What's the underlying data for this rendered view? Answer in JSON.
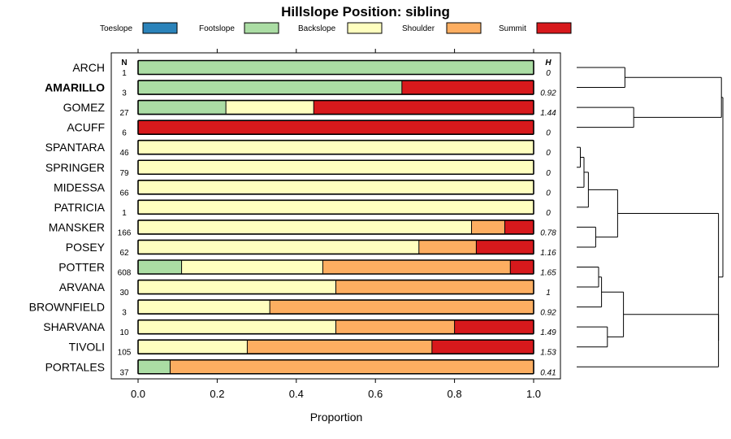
{
  "chart_data": {
    "type": "bar",
    "orientation": "horizontal",
    "stacked": true,
    "title": "Hillslope Position: sibling",
    "xlabel": "Proportion",
    "xlim": [
      0,
      1
    ],
    "xticks": [
      "0.0",
      "0.2",
      "0.4",
      "0.6",
      "0.8",
      "1.0"
    ],
    "n_header": "N",
    "h_header": "H",
    "legend_position": "top",
    "series": [
      {
        "name": "Toeslope",
        "color": "#2b83ba"
      },
      {
        "name": "Footslope",
        "color": "#abdda4"
      },
      {
        "name": "Backslope",
        "color": "#ffffbf"
      },
      {
        "name": "Shoulder",
        "color": "#fdae61"
      },
      {
        "name": "Summit",
        "color": "#d7191c"
      }
    ],
    "rows": [
      {
        "label": "ARCH",
        "n": "1",
        "h": "0",
        "bold": false,
        "values": [
          0,
          1.0,
          0,
          0,
          0
        ]
      },
      {
        "label": "AMARILLO",
        "n": "3",
        "h": "0.92",
        "bold": true,
        "values": [
          0,
          0.667,
          0,
          0,
          0.333
        ]
      },
      {
        "label": "GOMEZ",
        "n": "27",
        "h": "1.44",
        "bold": false,
        "values": [
          0,
          0.222,
          0.222,
          0,
          0.556
        ]
      },
      {
        "label": "ACUFF",
        "n": "6",
        "h": "0",
        "bold": false,
        "values": [
          0,
          0,
          0,
          0,
          1.0
        ]
      },
      {
        "label": "SPANTARA",
        "n": "46",
        "h": "0",
        "bold": false,
        "values": [
          0,
          0,
          1.0,
          0,
          0
        ]
      },
      {
        "label": "SPRINGER",
        "n": "79",
        "h": "0",
        "bold": false,
        "values": [
          0,
          0,
          1.0,
          0,
          0
        ]
      },
      {
        "label": "MIDESSA",
        "n": "66",
        "h": "0",
        "bold": false,
        "values": [
          0,
          0,
          1.0,
          0,
          0
        ]
      },
      {
        "label": "PATRICIA",
        "n": "1",
        "h": "0",
        "bold": false,
        "values": [
          0,
          0,
          1.0,
          0,
          0
        ]
      },
      {
        "label": "MANSKER",
        "n": "166",
        "h": "0.78",
        "bold": false,
        "values": [
          0,
          0,
          0.843,
          0.084,
          0.073
        ]
      },
      {
        "label": "POSEY",
        "n": "62",
        "h": "1.16",
        "bold": false,
        "values": [
          0,
          0,
          0.71,
          0.145,
          0.145
        ]
      },
      {
        "label": "POTTER",
        "n": "608",
        "h": "1.65",
        "bold": false,
        "values": [
          0,
          0.11,
          0.357,
          0.474,
          0.059
        ]
      },
      {
        "label": "ARVANA",
        "n": "30",
        "h": "1",
        "bold": false,
        "values": [
          0,
          0,
          0.5,
          0.5,
          0
        ]
      },
      {
        "label": "BROWNFIELD",
        "n": "3",
        "h": "0.92",
        "bold": false,
        "values": [
          0,
          0,
          0.333,
          0.667,
          0
        ]
      },
      {
        "label": "SHARVANA",
        "n": "10",
        "h": "1.49",
        "bold": false,
        "values": [
          0,
          0,
          0.5,
          0.3,
          0.2
        ]
      },
      {
        "label": "TIVOLI",
        "n": "105",
        "h": "1.53",
        "bold": false,
        "values": [
          0,
          0,
          0.276,
          0.467,
          0.257
        ]
      },
      {
        "label": "PORTALES",
        "n": "37",
        "h": "0.41",
        "bold": false,
        "values": [
          0,
          0.081,
          0,
          0.919,
          0
        ]
      }
    ],
    "dendrogram": {
      "shown": true,
      "side": "right",
      "merges": [
        [
          0,
          1,
          0.2
        ],
        [
          2,
          3,
          0.2
        ],
        [
          4,
          5,
          0.01
        ],
        [
          16,
          6,
          0.03
        ],
        [
          17,
          7,
          0.05
        ],
        [
          8,
          9,
          0.12
        ],
        [
          18,
          19,
          0.3
        ],
        [
          10,
          11,
          0.18
        ],
        [
          21,
          12,
          0.22
        ],
        [
          13,
          14,
          0.25
        ],
        [
          22,
          23,
          0.36
        ],
        [
          15,
          24,
          0.38
        ],
        [
          14.5,
          14.5,
          0
        ],
        [
          20,
          26,
          0.75
        ],
        [
          25,
          27,
          1.0
        ]
      ]
    }
  }
}
